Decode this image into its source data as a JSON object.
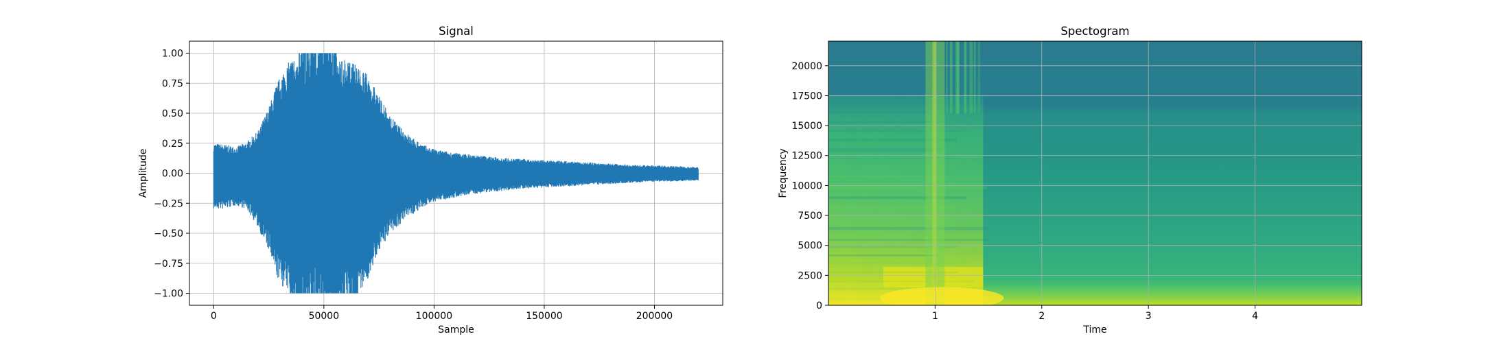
{
  "chart_data": [
    {
      "type": "line",
      "title": "Signal",
      "xlabel": "Sample",
      "ylabel": "Amplitude",
      "xlim": [
        -11000,
        231000
      ],
      "ylim": [
        -1.1,
        1.1
      ],
      "grid": true,
      "color": "#1f77b4",
      "x_ticks": [
        0,
        50000,
        100000,
        150000,
        200000
      ],
      "x_tick_labels": [
        "0",
        "50000",
        "100000",
        "150000",
        "200000"
      ],
      "y_ticks": [
        -1.0,
        -0.75,
        -0.5,
        -0.25,
        0.0,
        0.25,
        0.5,
        0.75,
        1.0
      ],
      "y_tick_labels": [
        "−1.00",
        "−0.75",
        "−0.50",
        "−0.25",
        "0.00",
        "0.25",
        "0.50",
        "0.75",
        "1.00"
      ],
      "envelope": {
        "x": [
          0,
          5000,
          10000,
          15000,
          20000,
          25000,
          28000,
          32000,
          36000,
          40000,
          45000,
          50000,
          55000,
          60000,
          65000,
          70000,
          75000,
          80000,
          85000,
          90000,
          95000,
          100000,
          110000,
          120000,
          130000,
          140000,
          150000,
          160000,
          170000,
          180000,
          190000,
          200000,
          210000,
          220000
        ],
        "upper": [
          0.25,
          0.24,
          0.22,
          0.26,
          0.35,
          0.55,
          0.72,
          0.88,
          0.97,
          1.0,
          1.0,
          1.0,
          1.0,
          0.95,
          0.9,
          0.82,
          0.65,
          0.48,
          0.38,
          0.3,
          0.24,
          0.2,
          0.17,
          0.15,
          0.13,
          0.12,
          0.11,
          0.1,
          0.09,
          0.08,
          0.07,
          0.065,
          0.06,
          0.05
        ],
        "lower": [
          -0.3,
          -0.3,
          -0.27,
          -0.3,
          -0.45,
          -0.65,
          -0.85,
          -0.97,
          -1.0,
          -1.0,
          -1.0,
          -1.0,
          -1.0,
          -1.0,
          -1.0,
          -0.9,
          -0.65,
          -0.5,
          -0.42,
          -0.35,
          -0.28,
          -0.24,
          -0.2,
          -0.17,
          -0.15,
          -0.13,
          -0.12,
          -0.11,
          -0.1,
          -0.09,
          -0.08,
          -0.07,
          -0.07,
          -0.06
        ]
      }
    },
    {
      "type": "heatmap",
      "title": "Spectogram",
      "xlabel": "Time",
      "ylabel": "Frequency",
      "xlim": [
        0.0,
        5.0
      ],
      "ylim": [
        0,
        22050
      ],
      "grid": true,
      "colormap": "viridis",
      "x_ticks": [
        1,
        2,
        3,
        4
      ],
      "x_tick_labels": [
        "1",
        "2",
        "3",
        "4"
      ],
      "y_ticks": [
        0,
        2500,
        5000,
        7500,
        10000,
        12500,
        15000,
        17500,
        20000
      ],
      "y_tick_labels": [
        "0",
        "2500",
        "5000",
        "7500",
        "10000",
        "12500",
        "15000",
        "17500",
        "20000"
      ],
      "onset_time": 1.0,
      "decay_time": 1.45,
      "background_intensity": 0.5,
      "colors": {
        "low": "#277f8e",
        "mid": "#35b779",
        "high": "#fde725"
      }
    }
  ]
}
